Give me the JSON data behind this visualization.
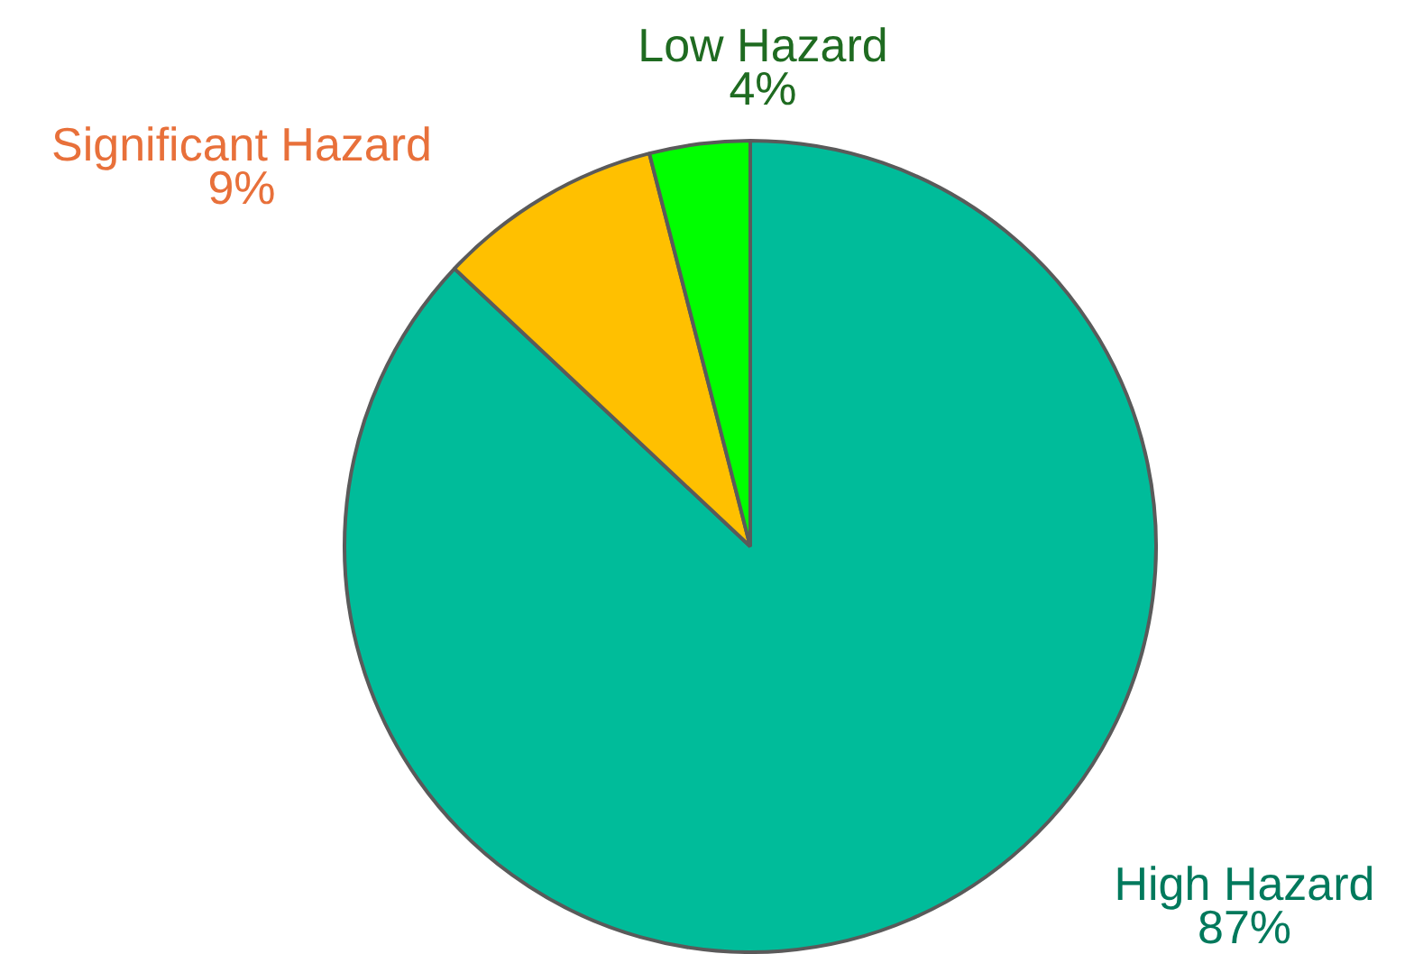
{
  "chart_data": {
    "type": "pie",
    "categories": [
      "High Hazard",
      "Significant Hazard",
      "Low Hazard"
    ],
    "values": [
      87,
      9,
      4
    ],
    "colors": [
      "#00bc9a",
      "#ffc000",
      "#00ff00"
    ],
    "value_labels": [
      "87%",
      "9%",
      "4%"
    ],
    "legend": false
  }
}
